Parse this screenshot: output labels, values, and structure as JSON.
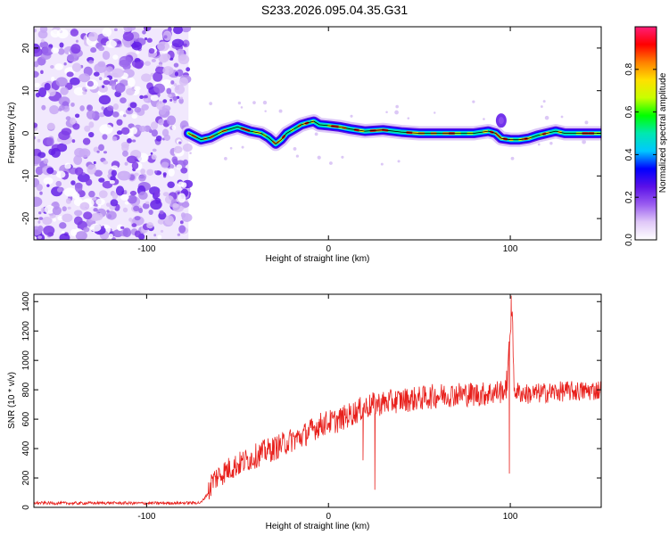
{
  "title": "S233.2026.095.04.35.G31",
  "chart_data": [
    {
      "type": "heatmap",
      "xlabel": "Height of straight line (km)",
      "ylabel": "Frequency (Hz)",
      "xlim": [
        -162,
        150
      ],
      "ylim": [
        -25,
        25
      ],
      "xticks": [
        -100,
        0,
        100
      ],
      "xtick_labels": [
        "-100",
        "0",
        "100"
      ],
      "yticks": [
        -20,
        -10,
        0,
        10,
        20
      ],
      "ytick_labels": [
        "-20",
        "-10",
        "0",
        "10",
        "20"
      ],
      "noise_region_x": [
        -162,
        -77
      ],
      "ridge": {
        "x": [
          -77,
          -70,
          -65,
          -58,
          -50,
          -43,
          -37,
          -33,
          -29,
          -26,
          -23,
          -19,
          -15,
          -11,
          -8,
          -5,
          0,
          6,
          12,
          20,
          30,
          40,
          50,
          60,
          70,
          80,
          88,
          92,
          95,
          100,
          105,
          110,
          115,
          120,
          125,
          130,
          140,
          150
        ],
        "freq_hz": [
          0,
          -1.5,
          -1,
          0.5,
          1.5,
          0.5,
          0,
          -1,
          -2.5,
          -1.5,
          0,
          1,
          2,
          2.5,
          2.8,
          2,
          1.8,
          1.5,
          1,
          0.5,
          0.8,
          0.3,
          0,
          0,
          0,
          0,
          0.5,
          0,
          -1.2,
          -1.5,
          -1.5,
          -1.2,
          -0.5,
          0,
          0.5,
          0,
          0,
          0
        ]
      },
      "colorbar": {
        "label": "Normalized spectral amplitude",
        "range": [
          0,
          1
        ],
        "ticks": [
          0.0,
          0.2,
          0.4,
          0.6,
          0.8
        ],
        "tick_labels": [
          "0.0",
          "0.2",
          "0.4",
          "0.6",
          "0.8"
        ],
        "colors": [
          "#ffffff",
          "#e0c8f8",
          "#9a5cf0",
          "#5a10e8",
          "#0000ff",
          "#00c8ff",
          "#00e8b0",
          "#00ff00",
          "#c8ff00",
          "#ffe000",
          "#ff8000",
          "#ff0000",
          "#ff1e78"
        ]
      }
    },
    {
      "type": "line",
      "xlabel": "Height of straight line (km)",
      "ylabel": "SNR (10 * v/v)",
      "xlim": [
        -162,
        150
      ],
      "ylim": [
        0,
        1450
      ],
      "xticks": [
        -100,
        0,
        100
      ],
      "xtick_labels": [
        "-100",
        "0",
        "100"
      ],
      "yticks": [
        0,
        200,
        400,
        600,
        800,
        1000,
        1200,
        1400
      ],
      "ytick_labels": [
        "0",
        "200",
        "400",
        "600",
        "800",
        "1000",
        "1200",
        "1400"
      ],
      "color": "#e8201c",
      "series": [
        {
          "name": "SNR",
          "x": [
            -162,
            -140,
            -120,
            -100,
            -80,
            -70,
            -66,
            -64,
            -60,
            -55,
            -50,
            -45,
            -40,
            -35,
            -30,
            -25,
            -20,
            -15,
            -10,
            -5,
            0,
            5,
            10,
            15,
            20,
            25,
            30,
            40,
            50,
            60,
            70,
            80,
            85,
            90,
            95,
            98,
            100,
            101,
            102,
            105,
            110,
            120,
            130,
            140,
            150
          ],
          "y": [
            30,
            28,
            30,
            28,
            30,
            32,
            100,
            180,
            220,
            260,
            290,
            320,
            350,
            380,
            400,
            430,
            460,
            480,
            520,
            560,
            580,
            590,
            620,
            650,
            680,
            700,
            710,
            730,
            740,
            760,
            770,
            770,
            770,
            780,
            790,
            800,
            1200,
            1400,
            800,
            780,
            770,
            780,
            790,
            790,
            800
          ]
        }
      ],
      "spikes": [
        {
          "x": 25.5,
          "y": 120
        },
        {
          "x": 19,
          "y": 320
        },
        {
          "x": 99.5,
          "y": 230
        },
        {
          "x": 100.5,
          "y": 1440
        },
        {
          "x": 98,
          "y": 930
        }
      ]
    }
  ]
}
